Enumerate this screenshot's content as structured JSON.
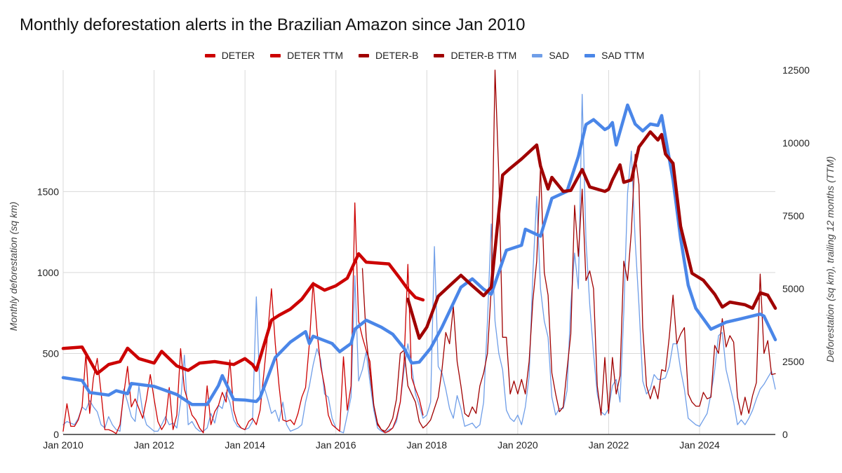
{
  "chart_data": {
    "type": "line",
    "title": "Monthly deforestation alerts in the Brazilian Amazon since Jan 2010",
    "ylabel_left": "Monthly deforestation (sq km)",
    "ylabel_right": "Deforestation (sq km), trailing 12 months (TTM)",
    "xlabel": "",
    "x_ticks": [
      "Jan 2010",
      "Jan 2012",
      "Jan 2014",
      "Jan 2016",
      "Jan 2018",
      "Jan 2020",
      "Jan 2022",
      "Jan 2024"
    ],
    "x_range": [
      "2010-01",
      "2025-09"
    ],
    "y_left": {
      "range": [
        0,
        2250
      ],
      "ticks": [
        0,
        500,
        1000,
        1500
      ]
    },
    "y_right": {
      "range": [
        0,
        12500
      ],
      "ticks": [
        0,
        2500,
        5000,
        7500,
        10000,
        12500
      ]
    },
    "grid": true,
    "legend_position": "top",
    "series": [
      {
        "name": "DETER",
        "axis": "left",
        "color": "#cc0000",
        "style": "thin",
        "start": "2010-01",
        "values": [
          20,
          190,
          50,
          50,
          90,
          170,
          500,
          130,
          350,
          470,
          260,
          30,
          30,
          20,
          5,
          60,
          250,
          420,
          170,
          220,
          160,
          100,
          220,
          370,
          220,
          80,
          30,
          70,
          290,
          30,
          120,
          530,
          280,
          200,
          120,
          90,
          40,
          10,
          300,
          60,
          140,
          180,
          260,
          200,
          460,
          150,
          70,
          40,
          30,
          80,
          100,
          60,
          150,
          380,
          620,
          900,
          560,
          300,
          90,
          80,
          90,
          60,
          130,
          230,
          290,
          560,
          940,
          640,
          420,
          300,
          120,
          60,
          40,
          20,
          480,
          150,
          300,
          1430,
          700,
          600,
          520,
          450,
          180,
          70,
          30,
          10,
          20,
          40,
          100,
          200,
          450,
          1050,
          350,
          280,
          220,
          120
        ]
      },
      {
        "name": "DETER TTM",
        "axis": "right",
        "color": "#cc0000",
        "style": "thick",
        "points": [
          [
            "2010-01",
            2950
          ],
          [
            "2010-06",
            3000
          ],
          [
            "2010-10",
            2090
          ],
          [
            "2011-01",
            2400
          ],
          [
            "2011-04",
            2500
          ],
          [
            "2011-06",
            2960
          ],
          [
            "2011-09",
            2600
          ],
          [
            "2012-01",
            2450
          ],
          [
            "2012-03",
            2850
          ],
          [
            "2012-07",
            2350
          ],
          [
            "2012-10",
            2200
          ],
          [
            "2013-01",
            2450
          ],
          [
            "2013-05",
            2500
          ],
          [
            "2013-10",
            2400
          ],
          [
            "2014-01",
            2600
          ],
          [
            "2014-03",
            2400
          ],
          [
            "2014-04",
            2200
          ],
          [
            "2014-08",
            3920
          ],
          [
            "2014-10",
            4090
          ],
          [
            "2015-01",
            4300
          ],
          [
            "2015-04",
            4640
          ],
          [
            "2015-07",
            5170
          ],
          [
            "2015-10",
            4950
          ],
          [
            "2016-01",
            5100
          ],
          [
            "2016-04",
            5360
          ],
          [
            "2016-07",
            6200
          ],
          [
            "2016-09",
            5910
          ],
          [
            "2017-03",
            5850
          ],
          [
            "2017-06",
            5340
          ],
          [
            "2017-08",
            4980
          ],
          [
            "2017-10",
            4700
          ],
          [
            "2017-12",
            4615
          ]
        ]
      },
      {
        "name": "DETER-B",
        "axis": "left",
        "color": "#a00000",
        "style": "thin",
        "start": "2016-08",
        "values": [
          1025,
          600,
          380,
          180,
          60,
          30,
          20,
          50,
          100,
          220,
          500,
          520,
          300,
          250,
          200,
          80,
          40,
          60,
          90,
          160,
          230,
          400,
          630,
          560,
          790,
          450,
          300,
          130,
          110,
          170,
          130,
          300,
          380,
          500,
          900,
          2250,
          1600,
          600,
          600,
          250,
          330,
          250,
          340,
          250,
          450,
          830,
          1070,
          1650,
          1000,
          860,
          380,
          250,
          140,
          170,
          400,
          620,
          1415,
          1100,
          1515,
          950,
          1010,
          900,
          300,
          120,
          475,
          130,
          475,
          250,
          360,
          1070,
          950,
          1255,
          1730,
          1545,
          660,
          300,
          220,
          300,
          220,
          400,
          390,
          600,
          860,
          560,
          620,
          660,
          250,
          200,
          175,
          175,
          260,
          220,
          230,
          550,
          500,
          715,
          540,
          610,
          570,
          230,
          120,
          230,
          130,
          240,
          320,
          990,
          500,
          580,
          370,
          375
        ]
      },
      {
        "name": "DETER-B TTM",
        "axis": "right",
        "color": "#a00000",
        "style": "thick",
        "points": [
          [
            "2017-08",
            4640
          ],
          [
            "2017-11",
            3300
          ],
          [
            "2018-01",
            3680
          ],
          [
            "2018-04",
            4740
          ],
          [
            "2018-10",
            5460
          ],
          [
            "2019-01",
            5100
          ],
          [
            "2019-04",
            4760
          ],
          [
            "2019-06",
            5050
          ],
          [
            "2019-09",
            8900
          ],
          [
            "2019-11",
            9130
          ],
          [
            "2020-02",
            9450
          ],
          [
            "2020-06",
            9930
          ],
          [
            "2020-07",
            9210
          ],
          [
            "2020-09",
            8420
          ],
          [
            "2020-10",
            8820
          ],
          [
            "2021-01",
            8340
          ],
          [
            "2021-03",
            8370
          ],
          [
            "2021-06",
            9090
          ],
          [
            "2021-08",
            8490
          ],
          [
            "2021-12",
            8340
          ],
          [
            "2022-01",
            8410
          ],
          [
            "2022-02",
            8730
          ],
          [
            "2022-04",
            9250
          ],
          [
            "2022-05",
            8650
          ],
          [
            "2022-07",
            8730
          ],
          [
            "2022-09",
            9860
          ],
          [
            "2022-12",
            10380
          ],
          [
            "2023-02",
            10100
          ],
          [
            "2023-03",
            10290
          ],
          [
            "2023-04",
            9620
          ],
          [
            "2023-06",
            9300
          ],
          [
            "2023-08",
            7140
          ],
          [
            "2023-11",
            5530
          ],
          [
            "2024-02",
            5290
          ],
          [
            "2024-05",
            4810
          ],
          [
            "2024-07",
            4370
          ],
          [
            "2024-09",
            4540
          ],
          [
            "2025-01",
            4450
          ],
          [
            "2025-03",
            4330
          ],
          [
            "2025-05",
            4860
          ],
          [
            "2025-07",
            4780
          ],
          [
            "2025-09",
            4330
          ]
        ]
      },
      {
        "name": "SAD",
        "axis": "left",
        "color": "#6f9ee8",
        "style": "thin",
        "start": "2010-01",
        "values": [
          60,
          80,
          70,
          60,
          100,
          170,
          150,
          210,
          170,
          140,
          60,
          40,
          110,
          60,
          30,
          20,
          280,
          200,
          110,
          80,
          300,
          140,
          60,
          40,
          20,
          20,
          60,
          110,
          60,
          70,
          40,
          200,
          490,
          60,
          80,
          40,
          20,
          20,
          40,
          130,
          70,
          180,
          160,
          260,
          200,
          90,
          50,
          40,
          30,
          40,
          80,
          850,
          250,
          300,
          220,
          130,
          150,
          80,
          200,
          60,
          20,
          30,
          40,
          60,
          200,
          300,
          430,
          530,
          460,
          250,
          230,
          100,
          40,
          20,
          10,
          120,
          230,
          980,
          330,
          400,
          510,
          320,
          150,
          40,
          20,
          10,
          30,
          40,
          80,
          200,
          400,
          560,
          420,
          250,
          180,
          100,
          120,
          200,
          1160,
          420,
          380,
          280,
          160,
          100,
          240,
          160,
          50,
          60,
          70,
          40,
          60,
          200,
          700,
          1300,
          700,
          500,
          400,
          150,
          100,
          80,
          120,
          60,
          170,
          360,
          1000,
          1470,
          900,
          700,
          600,
          230,
          120,
          160,
          160,
          270,
          800,
          1120,
          900,
          2100,
          1200,
          800,
          500,
          250,
          140,
          120,
          160,
          300,
          340,
          200,
          750,
          1490,
          1750,
          1200,
          800,
          330,
          250,
          280,
          370,
          340,
          340,
          350,
          420,
          560,
          560,
          400,
          280,
          100,
          80,
          60,
          50,
          90,
          130,
          250,
          400,
          610,
          630,
          400,
          300,
          200,
          60,
          90,
          60,
          100,
          150,
          220,
          280,
          310,
          350,
          390,
          280
        ]
      },
      {
        "name": "SAD TTM",
        "axis": "right",
        "color": "#4a86e8",
        "style": "thick",
        "points": [
          [
            "2010-01",
            1950
          ],
          [
            "2010-06",
            1850
          ],
          [
            "2010-08",
            1440
          ],
          [
            "2011-01",
            1350
          ],
          [
            "2011-03",
            1500
          ],
          [
            "2011-06",
            1400
          ],
          [
            "2011-07",
            1750
          ],
          [
            "2012-01",
            1650
          ],
          [
            "2012-07",
            1370
          ],
          [
            "2012-11",
            1030
          ],
          [
            "2013-03",
            1030
          ],
          [
            "2013-06",
            1680
          ],
          [
            "2013-07",
            2020
          ],
          [
            "2013-10",
            1200
          ],
          [
            "2014-01",
            1180
          ],
          [
            "2014-04",
            1130
          ],
          [
            "2014-05",
            1270
          ],
          [
            "2014-09",
            2640
          ],
          [
            "2015-01",
            3170
          ],
          [
            "2015-05",
            3530
          ],
          [
            "2015-06",
            3120
          ],
          [
            "2015-07",
            3370
          ],
          [
            "2015-12",
            3120
          ],
          [
            "2016-02",
            2840
          ],
          [
            "2016-05",
            3120
          ],
          [
            "2016-06",
            3610
          ],
          [
            "2016-09",
            3920
          ],
          [
            "2017-01",
            3680
          ],
          [
            "2017-04",
            3440
          ],
          [
            "2017-07",
            2960
          ],
          [
            "2017-09",
            2450
          ],
          [
            "2017-11",
            2480
          ],
          [
            "2018-02",
            2960
          ],
          [
            "2018-05",
            3680
          ],
          [
            "2018-10",
            5050
          ],
          [
            "2019-01",
            5340
          ],
          [
            "2019-04",
            4980
          ],
          [
            "2019-06",
            4810
          ],
          [
            "2019-10",
            6320
          ],
          [
            "2020-02",
            6490
          ],
          [
            "2020-03",
            7040
          ],
          [
            "2020-07",
            6800
          ],
          [
            "2020-10",
            8100
          ],
          [
            "2021-02",
            8340
          ],
          [
            "2021-05",
            9540
          ],
          [
            "2021-07",
            10630
          ],
          [
            "2021-09",
            10800
          ],
          [
            "2021-12",
            10460
          ],
          [
            "2022-01",
            10530
          ],
          [
            "2022-02",
            10700
          ],
          [
            "2022-03",
            9930
          ],
          [
            "2022-06",
            11300
          ],
          [
            "2022-08",
            10650
          ],
          [
            "2022-10",
            10410
          ],
          [
            "2022-12",
            10650
          ],
          [
            "2023-02",
            10600
          ],
          [
            "2023-03",
            10940
          ],
          [
            "2023-06",
            8730
          ],
          [
            "2023-08",
            6730
          ],
          [
            "2023-10",
            5120
          ],
          [
            "2023-12",
            4330
          ],
          [
            "2024-04",
            3610
          ],
          [
            "2024-08",
            3850
          ],
          [
            "2024-12",
            3970
          ],
          [
            "2025-05",
            4130
          ],
          [
            "2025-06",
            4060
          ],
          [
            "2025-09",
            3250
          ]
        ]
      }
    ]
  }
}
